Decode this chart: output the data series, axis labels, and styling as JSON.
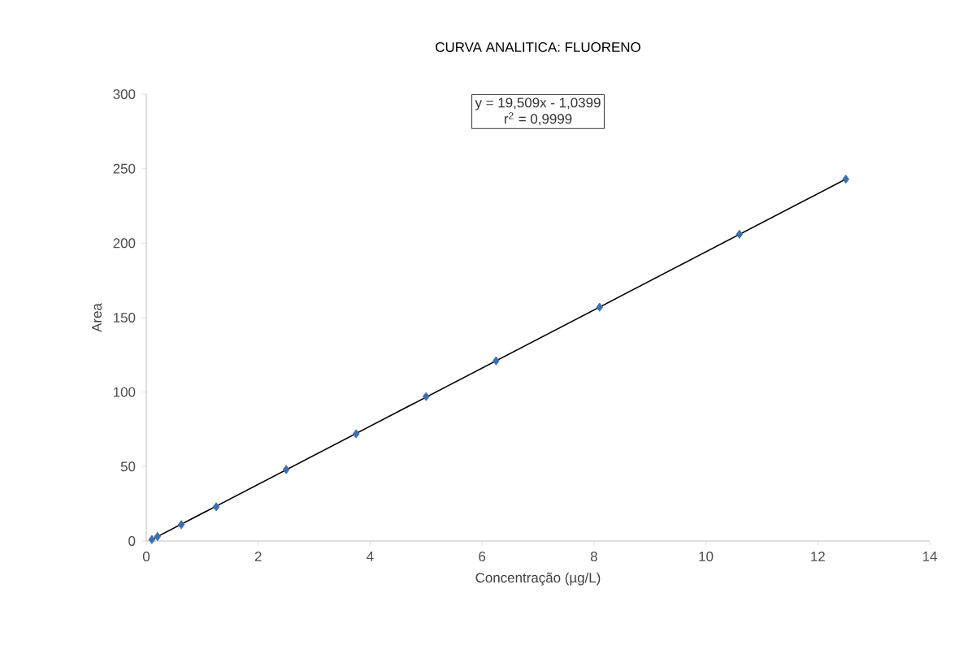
{
  "chart_data": {
    "type": "scatter",
    "title": "CURVA ANALITICA: FLUORENO",
    "xlabel": "Concentração (µg/L)",
    "ylabel": "Area",
    "annotations": [
      "y = 19,509x - 1,0399",
      "r$^{2}$ = 0,9999"
    ],
    "series": [
      {
        "color": "#3a6fb0",
        "marker": "diamond",
        "x": [
          0.1,
          0.2,
          0.625,
          1.25,
          2.5,
          3.75,
          5.0,
          6.25,
          8.1,
          10.6,
          12.5
        ],
        "values": [
          1,
          3,
          11,
          23,
          48,
          72,
          97,
          121,
          157,
          206,
          243
        ]
      },
      {
        "type": "line",
        "color": "#000000",
        "x": [
          0.1,
          12.5
        ],
        "values": [
          1,
          243
        ]
      }
    ],
    "xlim": [
      0,
      14
    ],
    "xticks": [
      0,
      2,
      4,
      6,
      8,
      10,
      12,
      14
    ],
    "ylim": [
      0,
      300
    ],
    "yticks": [
      0,
      50,
      100,
      150,
      200,
      250,
      300
    ],
    "grid": false
  }
}
